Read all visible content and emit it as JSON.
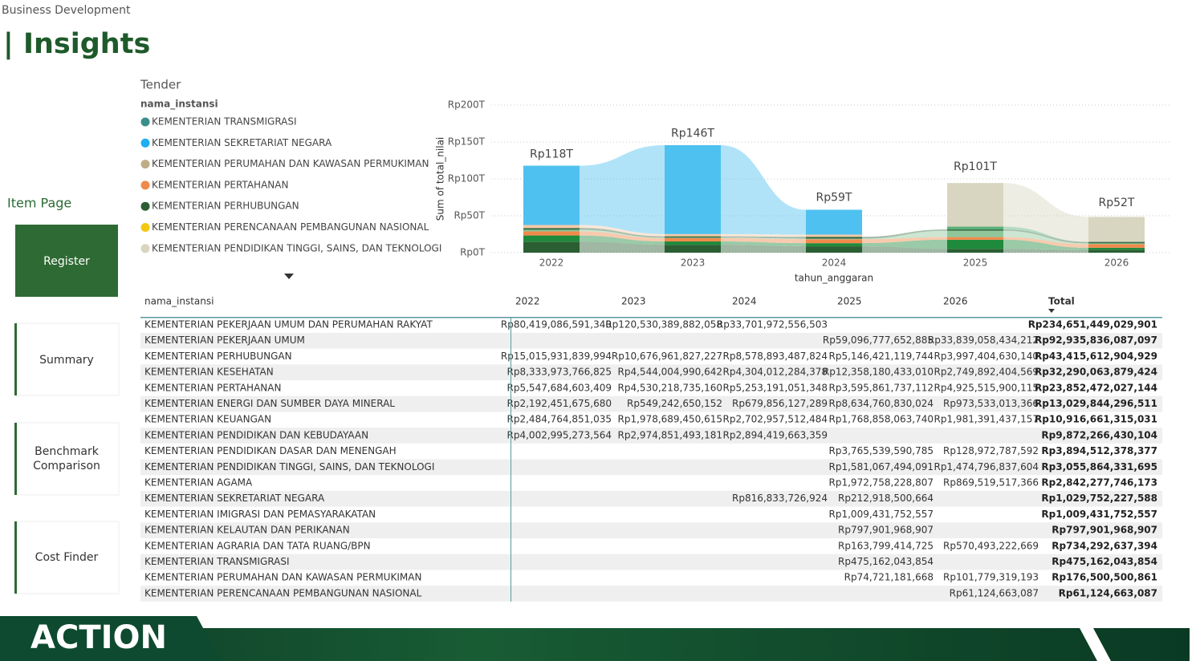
{
  "header": {
    "breadcrumb": "Business Development",
    "title": "| Insights"
  },
  "nav": {
    "title": "Item Page",
    "buttons": [
      "Register",
      "Summary",
      "Benchmark Comparison",
      "Cost Finder"
    ]
  },
  "legend": {
    "heading": "Tender",
    "title": "nama_instansi",
    "items": [
      {
        "name": "KEMENTERIAN TRANSMIGRASI",
        "color": "#3a8f8a"
      },
      {
        "name": "KEMENTERIAN SEKRETARIAT NEGARA",
        "color": "#21aef0"
      },
      {
        "name": "KEMENTERIAN PERUMAHAN DAN KAWASAN PERMUKIMAN",
        "color": "#bfae85"
      },
      {
        "name": "KEMENTERIAN PERTAHANAN",
        "color": "#f08a4b"
      },
      {
        "name": "KEMENTERIAN PERHUBUNGAN",
        "color": "#2b5f33"
      },
      {
        "name": "KEMENTERIAN PERENCANAAN PEMBANGUNAN NASIONAL",
        "color": "#f2c811"
      },
      {
        "name": "KEMENTERIAN PENDIDIKAN TINGGI, SAINS, DAN TEKNOLOGI",
        "color": "#d8d6c0"
      }
    ]
  },
  "chart_data": {
    "type": "ribbon",
    "y_label": "Sum of total_nilai",
    "x_label": "tahun_anggaran",
    "categories": [
      "2022",
      "2023",
      "2024",
      "2025",
      "2026"
    ],
    "ylim": [
      0,
      200
    ],
    "yticks": [
      {
        "value": 0,
        "label": "Rp0T"
      },
      {
        "value": 50,
        "label": "Rp50T"
      },
      {
        "value": 100,
        "label": "Rp100T"
      },
      {
        "value": 150,
        "label": "Rp150T"
      },
      {
        "value": 200,
        "label": "Rp200T"
      }
    ],
    "grid": true,
    "series": [
      {
        "color": "#2b5f33",
        "values": [
          15.0,
          10.7,
          8.6,
          5.1,
          4.0
        ]
      },
      {
        "color": "#1f8a3c",
        "values": [
          8.3,
          4.5,
          4.3,
          12.4,
          2.7
        ]
      },
      {
        "color": "#f08a4b",
        "values": [
          5.5,
          4.5,
          5.3,
          3.6,
          4.9
        ]
      },
      {
        "color": "#8fc79a",
        "values": [
          2.2,
          0.5,
          0.7,
          8.6,
          1.0
        ]
      },
      {
        "color": "#3b6e45",
        "values": [
          2.5,
          2.0,
          2.7,
          1.8,
          2.0
        ]
      },
      {
        "color": "#f5c9a8",
        "values": [
          4.0,
          3.0,
          2.9,
          null,
          null
        ]
      },
      {
        "color": "#5bb07a",
        "values": [
          null,
          null,
          null,
          3.8,
          0.1
        ]
      },
      {
        "color": "#4fc1f0",
        "values": [
          80.4,
          120.5,
          33.7,
          null,
          null
        ]
      },
      {
        "color": "#d8d6c0",
        "values": [
          null,
          null,
          null,
          59.1,
          33.8
        ]
      }
    ],
    "totals": [
      118,
      146,
      59,
      101,
      52
    ],
    "total_labels": [
      "Rp118T",
      "Rp146T",
      "Rp59T",
      "Rp101T",
      "Rp52T"
    ]
  },
  "table": {
    "columns": [
      "nama_instansi",
      "2022",
      "2023",
      "2024",
      "2025",
      "2026",
      "Total"
    ],
    "rows": [
      [
        "KEMENTERIAN PEKERJAAN UMUM DAN PERUMAHAN RAKYAT",
        "Rp80,419,086,591,340",
        "Rp120,530,389,882,058",
        "Rp33,701,972,556,503",
        null,
        null,
        "Rp234,651,449,029,901"
      ],
      [
        "KEMENTERIAN PEKERJAAN UMUM",
        null,
        null,
        null,
        "Rp59,096,777,652,885",
        "Rp33,839,058,434,212",
        "Rp92,935,836,087,097"
      ],
      [
        "KEMENTERIAN PERHUBUNGAN",
        "Rp15,015,931,839,994",
        "Rp10,676,961,827,227",
        "Rp8,578,893,487,824",
        "Rp5,146,421,119,744",
        "Rp3,997,404,630,140",
        "Rp43,415,612,904,929"
      ],
      [
        "KEMENTERIAN KESEHATAN",
        "Rp8,333,973,766,825",
        "Rp4,544,004,990,642",
        "Rp4,304,012,284,378",
        "Rp12,358,180,433,010",
        "Rp2,749,892,404,569",
        "Rp32,290,063,879,424"
      ],
      [
        "KEMENTERIAN PERTAHANAN",
        "Rp5,547,684,603,409",
        "Rp4,530,218,735,160",
        "Rp5,253,191,051,348",
        "Rp3,595,861,737,112",
        "Rp4,925,515,900,115",
        "Rp23,852,472,027,144"
      ],
      [
        "KEMENTERIAN ENERGI DAN SUMBER DAYA MINERAL",
        "Rp2,192,451,675,680",
        "Rp549,242,650,152",
        "Rp679,856,127,289",
        "Rp8,634,760,830,024",
        "Rp973,533,013,366",
        "Rp13,029,844,296,511"
      ],
      [
        "KEMENTERIAN KEUANGAN",
        "Rp2,484,764,851,035",
        "Rp1,978,689,450,615",
        "Rp2,702,957,512,484",
        "Rp1,768,858,063,740",
        "Rp1,981,391,437,157",
        "Rp10,916,661,315,031"
      ],
      [
        "KEMENTERIAN PENDIDIKAN DAN KEBUDAYAAN",
        "Rp4,002,995,273,564",
        "Rp2,974,851,493,181",
        "Rp2,894,419,663,359",
        null,
        null,
        "Rp9,872,266,430,104"
      ],
      [
        "KEMENTERIAN PENDIDIKAN DASAR DAN MENENGAH",
        null,
        null,
        null,
        "Rp3,765,539,590,785",
        "Rp128,972,787,592",
        "Rp3,894,512,378,377"
      ],
      [
        "KEMENTERIAN PENDIDIKAN TINGGI, SAINS, DAN TEKNOLOGI",
        null,
        null,
        null,
        "Rp1,581,067,494,091",
        "Rp1,474,796,837,604",
        "Rp3,055,864,331,695"
      ],
      [
        "KEMENTERIAN AGAMA",
        null,
        null,
        null,
        "Rp1,972,758,228,807",
        "Rp869,519,517,366",
        "Rp2,842,277,746,173"
      ],
      [
        "KEMENTERIAN SEKRETARIAT NEGARA",
        null,
        null,
        "Rp816,833,726,924",
        "Rp212,918,500,664",
        null,
        "Rp1,029,752,227,588"
      ],
      [
        "KEMENTERIAN IMIGRASI DAN PEMASYARAKATAN",
        null,
        null,
        null,
        "Rp1,009,431,752,557",
        null,
        "Rp1,009,431,752,557"
      ],
      [
        "KEMENTERIAN KELAUTAN DAN PERIKANAN",
        null,
        null,
        null,
        "Rp797,901,968,907",
        null,
        "Rp797,901,968,907"
      ],
      [
        "KEMENTERIAN AGRARIA DAN TATA RUANG/BPN",
        null,
        null,
        null,
        "Rp163,799,414,725",
        "Rp570,493,222,669",
        "Rp734,292,637,394"
      ],
      [
        "KEMENTERIAN TRANSMIGRASI",
        null,
        null,
        null,
        "Rp475,162,043,854",
        null,
        "Rp475,162,043,854"
      ],
      [
        "KEMENTERIAN PERUMAHAN DAN KAWASAN PERMUKIMAN",
        null,
        null,
        null,
        "Rp74,721,181,668",
        "Rp101,779,319,193",
        "Rp176,500,500,861"
      ],
      [
        "KEMENTERIAN PERENCANAAN PEMBANGUNAN NASIONAL",
        null,
        null,
        null,
        null,
        "Rp61,124,663,087",
        "Rp61,124,663,087"
      ]
    ]
  },
  "footer": {
    "logo": "ACTION"
  }
}
